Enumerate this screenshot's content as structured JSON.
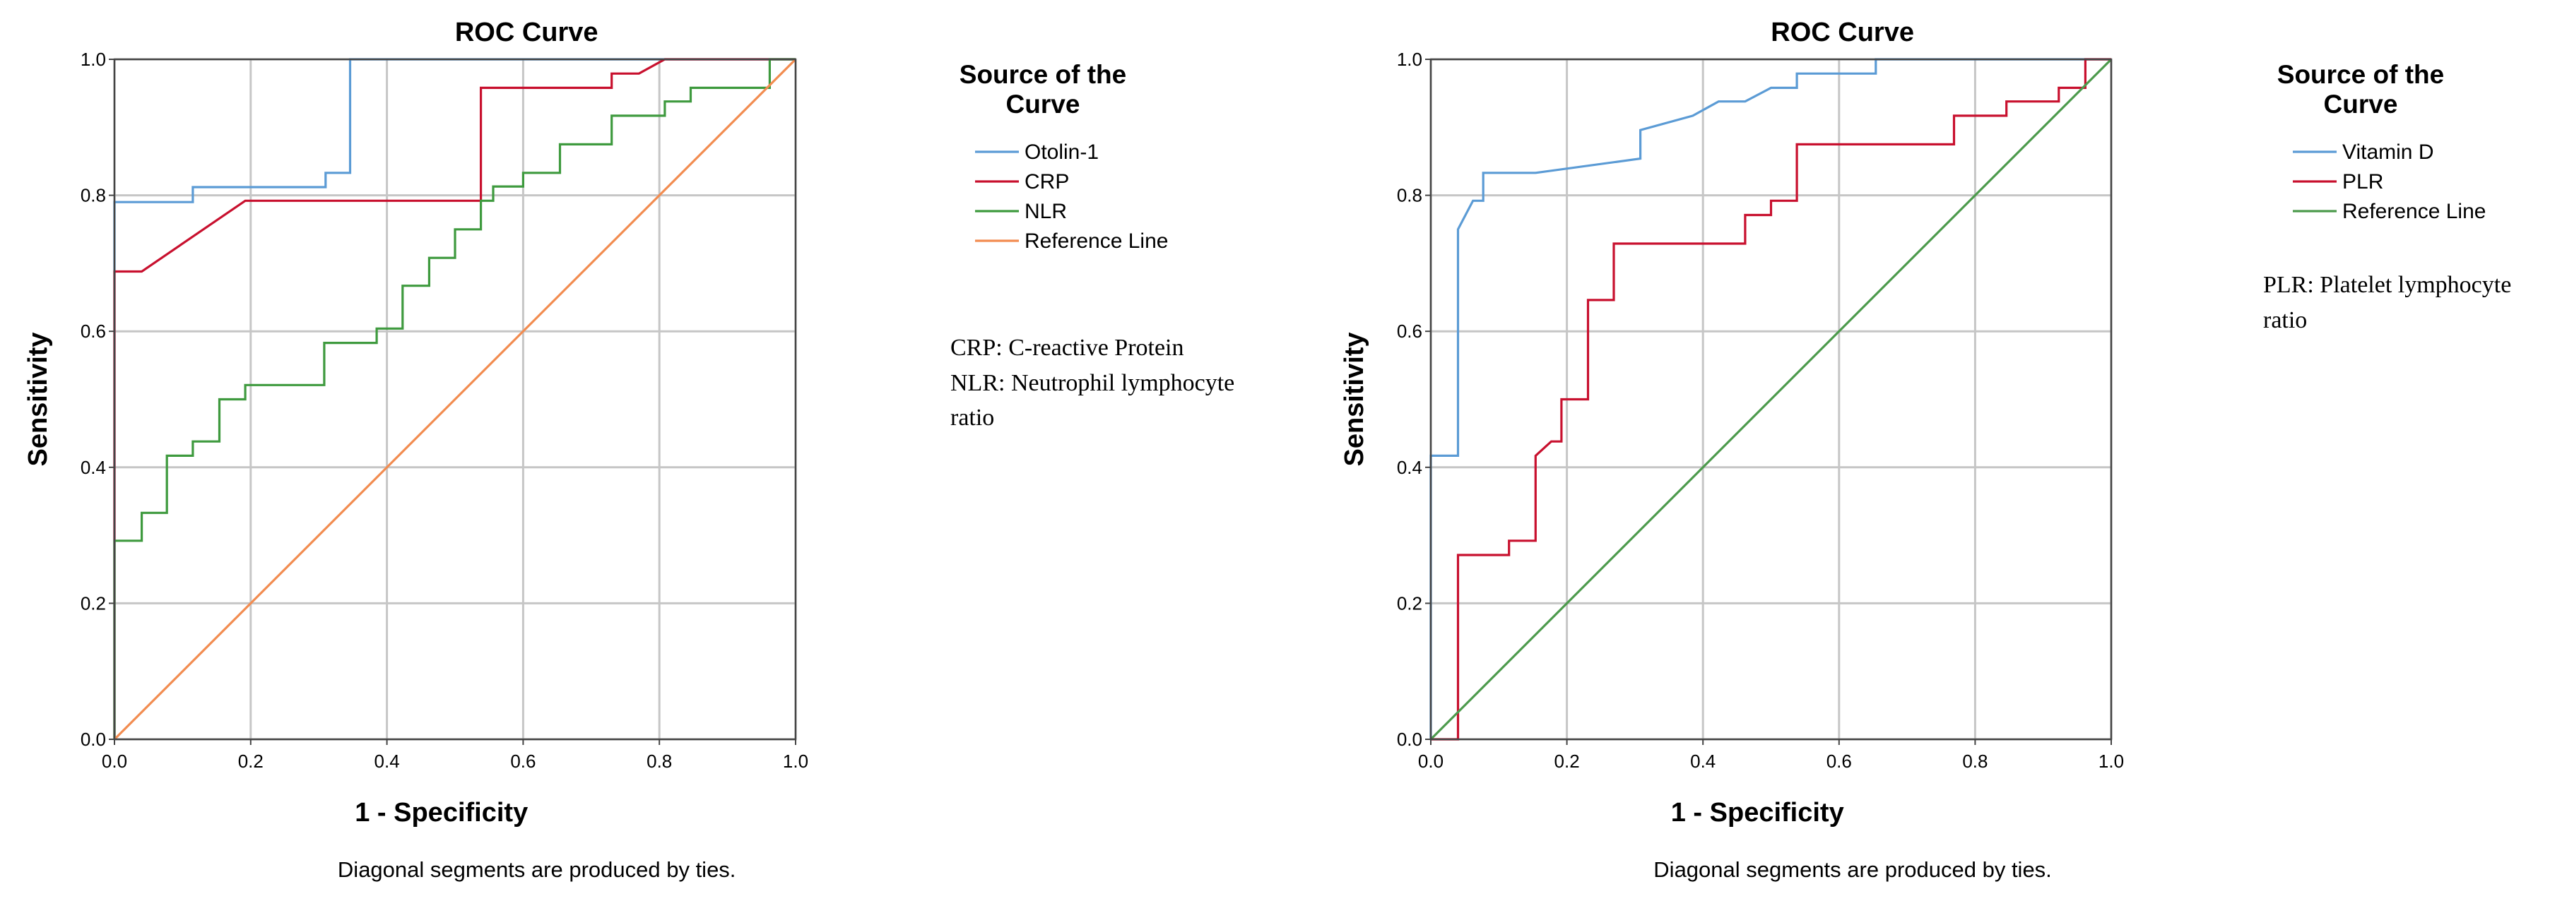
{
  "chart_data": [
    {
      "type": "line",
      "title": "ROC Curve",
      "xlabel": "1 - Specificity",
      "ylabel": "Sensitivity",
      "xlim": [
        0,
        1
      ],
      "ylim": [
        0,
        1
      ],
      "grid": true,
      "xticks": [
        "0.0",
        "0.2",
        "0.4",
        "0.6",
        "0.8",
        "1.0"
      ],
      "yticks": [
        "0.0",
        "0.2",
        "0.4",
        "0.6",
        "0.8",
        "1.0"
      ],
      "footnote": "Diagonal segments are produced by ties.",
      "legend": {
        "title_lines": [
          "Source of the",
          "Curve"
        ],
        "position": "right"
      },
      "notes": [
        "CRP: C-reactive Protein",
        "NLR: Neutrophil lymphocyte",
        "ratio"
      ],
      "series": [
        {
          "name": "Otolin-1",
          "color": "#5b9bd5",
          "points": [
            [
              0,
              0
            ],
            [
              0,
              0.79
            ],
            [
              0.115,
              0.79
            ],
            [
              0.115,
              0.812
            ],
            [
              0.31,
              0.812
            ],
            [
              0.31,
              0.833
            ],
            [
              0.346,
              0.833
            ],
            [
              0.346,
              1
            ],
            [
              1,
              1
            ]
          ]
        },
        {
          "name": "CRP",
          "color": "#c8102e",
          "points": [
            [
              0,
              0
            ],
            [
              0,
              0.688
            ],
            [
              0.04,
              0.688
            ],
            [
              0.192,
              0.792
            ],
            [
              0.538,
              0.792
            ],
            [
              0.538,
              0.958
            ],
            [
              0.73,
              0.958
            ],
            [
              0.73,
              0.979
            ],
            [
              0.77,
              0.979
            ],
            [
              0.808,
              1
            ],
            [
              1,
              1
            ]
          ]
        },
        {
          "name": "NLR",
          "color": "#3e9a3e",
          "points": [
            [
              0,
              0
            ],
            [
              0,
              0.292
            ],
            [
              0.04,
              0.292
            ],
            [
              0.04,
              0.333
            ],
            [
              0.077,
              0.333
            ],
            [
              0.077,
              0.417
            ],
            [
              0.115,
              0.417
            ],
            [
              0.115,
              0.438
            ],
            [
              0.154,
              0.438
            ],
            [
              0.154,
              0.5
            ],
            [
              0.192,
              0.5
            ],
            [
              0.192,
              0.521
            ],
            [
              0.308,
              0.521
            ],
            [
              0.308,
              0.583
            ],
            [
              0.385,
              0.583
            ],
            [
              0.385,
              0.604
            ],
            [
              0.423,
              0.604
            ],
            [
              0.423,
              0.667
            ],
            [
              0.462,
              0.667
            ],
            [
              0.462,
              0.708
            ],
            [
              0.5,
              0.708
            ],
            [
              0.5,
              0.75
            ],
            [
              0.538,
              0.75
            ],
            [
              0.538,
              0.792
            ],
            [
              0.556,
              0.792
            ],
            [
              0.556,
              0.813
            ],
            [
              0.6,
              0.813
            ],
            [
              0.6,
              0.833
            ],
            [
              0.654,
              0.833
            ],
            [
              0.654,
              0.875
            ],
            [
              0.73,
              0.875
            ],
            [
              0.73,
              0.917
            ],
            [
              0.808,
              0.917
            ],
            [
              0.808,
              0.938
            ],
            [
              0.846,
              0.938
            ],
            [
              0.846,
              0.958
            ],
            [
              0.962,
              0.958
            ],
            [
              0.962,
              1
            ],
            [
              1,
              1
            ]
          ]
        },
        {
          "name": "Reference Line",
          "color": "#f28c50",
          "points": [
            [
              0,
              0
            ],
            [
              1,
              1
            ]
          ]
        }
      ]
    },
    {
      "type": "line",
      "title": "ROC Curve",
      "xlabel": "1 - Specificity",
      "ylabel": "Sensitivity",
      "xlim": [
        0,
        1
      ],
      "ylim": [
        0,
        1
      ],
      "grid": true,
      "xticks": [
        "0.0",
        "0.2",
        "0.4",
        "0.6",
        "0.8",
        "1.0"
      ],
      "yticks": [
        "0.0",
        "0.2",
        "0.4",
        "0.6",
        "0.8",
        "1.0"
      ],
      "footnote": "Diagonal segments are produced by ties.",
      "legend": {
        "title_lines": [
          "Source of the",
          "Curve"
        ],
        "position": "right"
      },
      "notes": [
        "PLR: Platelet lymphocyte",
        "ratio"
      ],
      "series": [
        {
          "name": "Vitamin D",
          "color": "#5b9bd5",
          "points": [
            [
              0,
              0
            ],
            [
              0,
              0.417
            ],
            [
              0.04,
              0.417
            ],
            [
              0.04,
              0.75
            ],
            [
              0.062,
              0.792
            ],
            [
              0.077,
              0.792
            ],
            [
              0.077,
              0.833
            ],
            [
              0.154,
              0.833
            ],
            [
              0.308,
              0.854
            ],
            [
              0.308,
              0.896
            ],
            [
              0.385,
              0.917
            ],
            [
              0.423,
              0.938
            ],
            [
              0.462,
              0.938
            ],
            [
              0.5,
              0.958
            ],
            [
              0.538,
              0.958
            ],
            [
              0.538,
              0.979
            ],
            [
              0.654,
              0.979
            ],
            [
              0.654,
              1
            ],
            [
              1,
              1
            ]
          ]
        },
        {
          "name": "PLR",
          "color": "#c8102e",
          "points": [
            [
              0,
              0
            ],
            [
              0.04,
              0
            ],
            [
              0.04,
              0.271
            ],
            [
              0.115,
              0.271
            ],
            [
              0.115,
              0.292
            ],
            [
              0.154,
              0.292
            ],
            [
              0.154,
              0.417
            ],
            [
              0.177,
              0.438
            ],
            [
              0.192,
              0.438
            ],
            [
              0.192,
              0.5
            ],
            [
              0.231,
              0.5
            ],
            [
              0.231,
              0.646
            ],
            [
              0.269,
              0.646
            ],
            [
              0.269,
              0.729
            ],
            [
              0.462,
              0.729
            ],
            [
              0.462,
              0.771
            ],
            [
              0.5,
              0.771
            ],
            [
              0.5,
              0.792
            ],
            [
              0.538,
              0.792
            ],
            [
              0.538,
              0.875
            ],
            [
              0.769,
              0.875
            ],
            [
              0.769,
              0.917
            ],
            [
              0.846,
              0.917
            ],
            [
              0.846,
              0.938
            ],
            [
              0.923,
              0.938
            ],
            [
              0.923,
              0.958
            ],
            [
              0.962,
              0.958
            ],
            [
              0.962,
              1
            ],
            [
              1,
              1
            ]
          ]
        },
        {
          "name": "Reference Line",
          "color": "#4c9a4c",
          "points": [
            [
              0,
              0
            ],
            [
              1,
              1
            ]
          ]
        }
      ]
    }
  ]
}
